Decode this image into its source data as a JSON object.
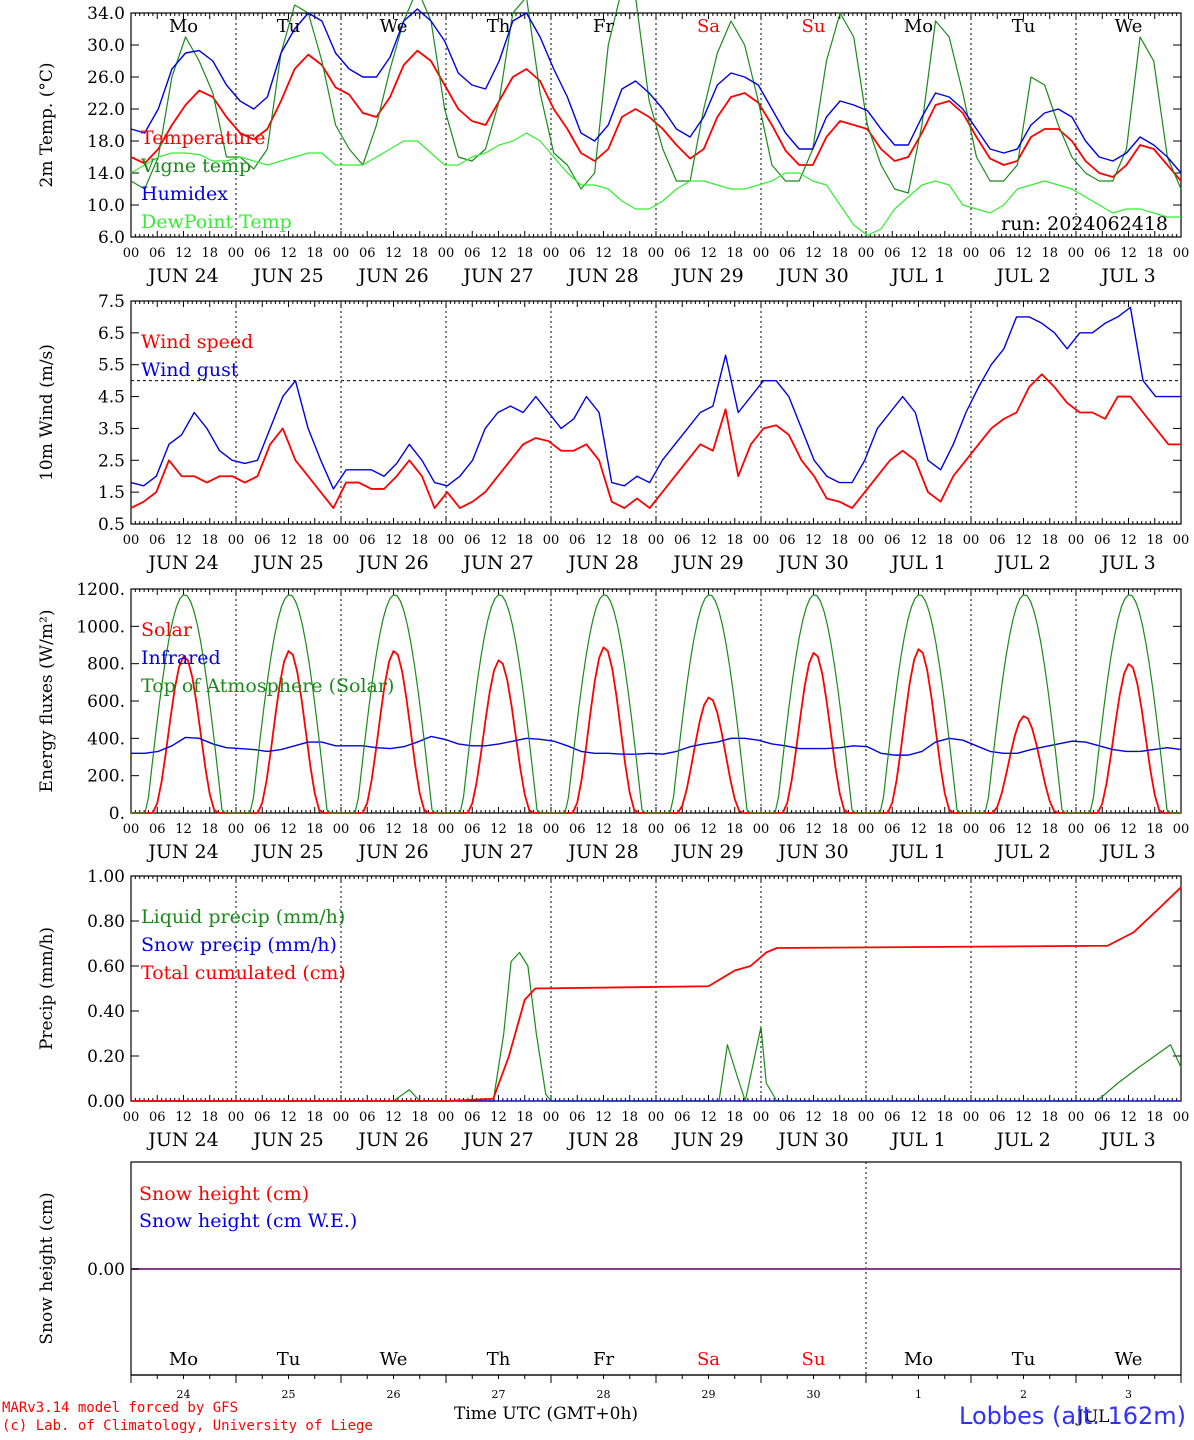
{
  "run_label": "run: 2024062418",
  "footer": {
    "model": "MARv3.14 model forced by GFS",
    "lab": "(c) Lab. of Climatology, University of Liege",
    "xlabel": "Time UTC (GMT+0h)",
    "overlap_label": "JUL",
    "station": "Lobbes (alt. 162m)"
  },
  "colors": {
    "red": "#ff0000",
    "green": "#1a8a1a",
    "blue": "#0000e0",
    "lightgreen": "#33ee33",
    "purple": "#8a3c8a"
  },
  "hour_ticks": [
    "00",
    "06",
    "12",
    "18"
  ],
  "days": [
    {
      "date": "JUN 24",
      "dow": "Mo",
      "weekend": false,
      "num": "24"
    },
    {
      "date": "JUN 25",
      "dow": "Tu",
      "weekend": false,
      "num": "25"
    },
    {
      "date": "JUN 26",
      "dow": "We",
      "weekend": false,
      "num": "26"
    },
    {
      "date": "JUN 27",
      "dow": "Th",
      "weekend": false,
      "num": "27"
    },
    {
      "date": "JUN 28",
      "dow": "Fr",
      "weekend": false,
      "num": "28"
    },
    {
      "date": "JUN 29",
      "dow": "Sa",
      "weekend": true,
      "num": "29"
    },
    {
      "date": "JUN 30",
      "dow": "Su",
      "weekend": true,
      "num": "30"
    },
    {
      "date": "JUL  1",
      "dow": "Mo",
      "weekend": false,
      "num": "1"
    },
    {
      "date": "JUL  2",
      "dow": "Tu",
      "weekend": false,
      "num": "2"
    },
    {
      "date": "JUL  3",
      "dow": "We",
      "weekend": false,
      "num": "3"
    }
  ],
  "chart_data": [
    {
      "type": "line",
      "ylabel": "2m Temp. (°C)",
      "ylim": [
        6,
        34
      ],
      "yticks": [
        "6.0",
        "10.0",
        "14.0",
        "18.0",
        "22.0",
        "26.0",
        "30.0",
        "34.0"
      ],
      "ytick_values": [
        6,
        10,
        14,
        18,
        22,
        26,
        30,
        34
      ],
      "show_dow": true,
      "series": [
        {
          "name": "Temperature",
          "color": "red",
          "values": [
            16,
            15.2,
            17,
            20,
            22.5,
            24.3,
            23.5,
            21,
            19,
            18.2,
            19.5,
            23,
            27,
            28.8,
            27.5,
            24.7,
            23.8,
            21.5,
            21,
            23.5,
            27.5,
            29.3,
            28,
            25,
            22,
            20.5,
            20,
            23,
            26,
            27,
            25.5,
            22,
            19.5,
            16.5,
            15.5,
            17,
            21,
            22,
            21,
            19.5,
            17.5,
            15.8,
            17,
            21,
            23.5,
            24,
            22.8,
            20,
            16.8,
            15,
            15,
            18.5,
            20.5,
            20,
            19.5,
            17,
            15.5,
            16,
            19,
            22.5,
            23,
            21.5,
            18.5,
            15.8,
            15,
            15.5,
            18.5,
            19.5,
            19.5,
            18,
            15.5,
            14,
            13.5,
            15,
            17.5,
            17,
            15,
            13
          ]
        },
        {
          "name": "Vigne temp",
          "color": "green",
          "values": [
            13,
            12,
            16,
            26,
            31,
            28,
            24,
            16,
            16,
            14.5,
            17,
            29,
            35,
            34,
            28,
            20,
            17,
            15,
            20,
            27,
            33,
            37,
            33,
            22,
            16,
            15.5,
            17,
            23,
            34,
            36,
            24,
            16.5,
            15,
            12,
            14,
            30,
            37,
            36,
            23,
            17,
            13,
            13,
            22,
            29,
            33,
            30,
            23,
            15,
            13,
            13,
            17,
            28,
            34,
            31,
            20,
            15,
            12,
            11.5,
            20,
            33,
            31,
            24,
            16,
            13,
            13,
            15,
            26,
            25,
            20,
            16,
            14,
            13,
            13,
            17,
            31,
            28,
            16,
            12
          ]
        },
        {
          "name": "Humidex",
          "color": "blue",
          "values": [
            19.5,
            19,
            22,
            27,
            29,
            29.3,
            28,
            25,
            23,
            22,
            23.5,
            29,
            32,
            34,
            33,
            29,
            27,
            26,
            26,
            28.5,
            33,
            34.5,
            33,
            30.5,
            26.5,
            25,
            24.5,
            28,
            33,
            34,
            31,
            27,
            23.5,
            19,
            18,
            20,
            24.5,
            25.5,
            24,
            22,
            19.5,
            18.5,
            21,
            25,
            26.5,
            26,
            25,
            22,
            19,
            17,
            17,
            21,
            23,
            22.5,
            21.8,
            19.5,
            17.5,
            17.5,
            21,
            24,
            23.5,
            22,
            19.5,
            17,
            16.5,
            17,
            20,
            21.5,
            22,
            21,
            18,
            16,
            15.5,
            16.5,
            18.5,
            17.5,
            16,
            14
          ]
        },
        {
          "name": "DewPoint Temp",
          "color": "lightgreen",
          "values": [
            14,
            15,
            16,
            16.5,
            16.5,
            16.3,
            15.5,
            15.5,
            16,
            15.5,
            15,
            15.5,
            16,
            16.5,
            16.5,
            15,
            15,
            15,
            16,
            17,
            18,
            18,
            16.5,
            15,
            15,
            16,
            16.5,
            17.5,
            18,
            19,
            18,
            16,
            14,
            12.5,
            12.5,
            12,
            10.5,
            9.5,
            9.5,
            10.5,
            12,
            13,
            13,
            12.5,
            12,
            12,
            12.5,
            13,
            14,
            14,
            13,
            12.5,
            10,
            7.5,
            6.2,
            7,
            9.5,
            11,
            12.5,
            13,
            12.5,
            10,
            9.5,
            9,
            10,
            12,
            12.5,
            13,
            12.5,
            12,
            11,
            10,
            9,
            9.5,
            9.5,
            9,
            8.5,
            8.5
          ]
        }
      ]
    },
    {
      "type": "line",
      "ylabel": "10m Wind (m/s)",
      "ylim": [
        0.5,
        7.5
      ],
      "yticks": [
        "0.5",
        "1.5",
        "2.5",
        "3.5",
        "4.5",
        "5.5",
        "6.5",
        "7.5"
      ],
      "ytick_values": [
        0.5,
        1.5,
        2.5,
        3.5,
        4.5,
        5.5,
        6.5,
        7.5
      ],
      "hline": 5,
      "show_dow": false,
      "series": [
        {
          "name": "Wind speed",
          "color": "red",
          "values": [
            1,
            1.2,
            1.5,
            2.5,
            2,
            2,
            1.8,
            2,
            2,
            1.8,
            2,
            3,
            3.5,
            2.5,
            2,
            1.5,
            1,
            1.8,
            1.8,
            1.6,
            1.6,
            2,
            2.5,
            2,
            1,
            1.5,
            1,
            1.2,
            1.5,
            2,
            2.5,
            3,
            3.2,
            3.1,
            2.8,
            2.8,
            3,
            2.5,
            1.2,
            1,
            1.3,
            1,
            1.5,
            2,
            2.5,
            3,
            2.8,
            4.1,
            2,
            3,
            3.5,
            3.6,
            3.3,
            2.5,
            2,
            1.3,
            1.2,
            1,
            1.5,
            2,
            2.5,
            2.8,
            2.5,
            1.5,
            1.2,
            2,
            2.5,
            3,
            3.5,
            3.8,
            4,
            4.8,
            5.2,
            4.8,
            4.3,
            4,
            4,
            3.8,
            4.5,
            4.5,
            4,
            3.5,
            3,
            3
          ]
        },
        {
          "name": "Wind gust",
          "color": "blue",
          "values": [
            1.8,
            1.7,
            2,
            3,
            3.3,
            4,
            3.5,
            2.8,
            2.5,
            2.4,
            2.5,
            3.5,
            4.5,
            5,
            3.5,
            2.5,
            1.6,
            2.2,
            2.2,
            2.2,
            2.0,
            2.4,
            3,
            2.5,
            1.8,
            1.7,
            2,
            2.5,
            3.5,
            4,
            4.2,
            4,
            4.5,
            4,
            3.5,
            3.8,
            4.5,
            4,
            1.8,
            1.7,
            2,
            1.8,
            2.5,
            3,
            3.5,
            4,
            4.2,
            5.8,
            4,
            4.5,
            5,
            5,
            4.5,
            3.5,
            2.5,
            2,
            1.8,
            1.8,
            2.5,
            3.5,
            4,
            4.5,
            4,
            2.5,
            2.2,
            3,
            4,
            4.8,
            5.5,
            6,
            7,
            7,
            6.8,
            6.5,
            6,
            6.5,
            6.5,
            6.8,
            7,
            7.3,
            5,
            4.5,
            4.5,
            4.5
          ]
        }
      ]
    },
    {
      "type": "line",
      "ylabel": "Energy fluxes (W/m²)",
      "ylim": [
        0,
        1200
      ],
      "yticks": [
        "0.",
        "200.",
        "400.",
        "600.",
        "800.",
        "1000.",
        "1200."
      ],
      "ytick_values": [
        0,
        200,
        400,
        600,
        800,
        1000,
        1200
      ],
      "show_dow": false,
      "series": [
        {
          "name": "Solar",
          "color": "red",
          "peaks": [
            [
              0,
              840
            ],
            [
              1,
              870
            ],
            [
              2,
              870
            ],
            [
              3,
              820
            ],
            [
              4,
              890
            ],
            [
              5,
              620
            ],
            [
              6,
              860
            ],
            [
              7,
              880
            ],
            [
              8,
              520
            ],
            [
              9,
              800
            ]
          ]
        },
        {
          "name": "Infrared",
          "color": "blue",
          "values": [
            320,
            320,
            330,
            360,
            405,
            400,
            370,
            350,
            345,
            340,
            330,
            340,
            360,
            380,
            380,
            360,
            360,
            360,
            350,
            345,
            355,
            380,
            410,
            395,
            370,
            360,
            360,
            370,
            385,
            400,
            395,
            385,
            360,
            330,
            320,
            320,
            315,
            315,
            320,
            315,
            330,
            355,
            370,
            380,
            400,
            400,
            390,
            370,
            360,
            345,
            345,
            345,
            350,
            360,
            355,
            320,
            310,
            310,
            330,
            380,
            400,
            390,
            360,
            330,
            320,
            320,
            340,
            355,
            370,
            385,
            380,
            360,
            340,
            330,
            330,
            340,
            350,
            340
          ]
        },
        {
          "name": "Top of Atmosphere (Solar)",
          "color": "green",
          "peak": 1170
        }
      ]
    },
    {
      "type": "line",
      "ylabel": "Precip (mm/h)",
      "ylim": [
        0,
        1
      ],
      "yticks": [
        "0.00",
        "0.20",
        "0.40",
        "0.60",
        "0.80",
        "1.00"
      ],
      "ytick_values": [
        0,
        0.2,
        0.4,
        0.6,
        0.8,
        1.0
      ],
      "show_dow": false,
      "series": [
        {
          "name": "Liquid precip (mm/h)",
          "color": "green",
          "points": [
            [
              2.5,
              0
            ],
            [
              2.65,
              0.05
            ],
            [
              2.75,
              0
            ],
            [
              3.45,
              0
            ],
            [
              3.55,
              0.3
            ],
            [
              3.62,
              0.62
            ],
            [
              3.7,
              0.66
            ],
            [
              3.78,
              0.6
            ],
            [
              3.86,
              0.3
            ],
            [
              3.95,
              0.03
            ],
            [
              4.0,
              0
            ],
            [
              5.6,
              0
            ],
            [
              5.68,
              0.25
            ],
            [
              5.78,
              0.1
            ],
            [
              5.85,
              0
            ],
            [
              6.0,
              0.33
            ],
            [
              6.05,
              0.08
            ],
            [
              6.15,
              0
            ],
            [
              9.2,
              0
            ],
            [
              9.4,
              0.08
            ],
            [
              9.6,
              0.15
            ],
            [
              9.75,
              0.2
            ],
            [
              9.9,
              0.25
            ],
            [
              10.0,
              0.15
            ]
          ]
        },
        {
          "name": "Snow precip (mm/h)",
          "color": "blue",
          "points": [
            [
              0,
              0
            ],
            [
              10,
              0
            ]
          ]
        },
        {
          "name": "Total cumulated (cm)",
          "color": "red",
          "points": [
            [
              0,
              0
            ],
            [
              2.65,
              0
            ],
            [
              3.0,
              0
            ],
            [
              3.45,
              0.01
            ],
            [
              3.6,
              0.2
            ],
            [
              3.75,
              0.45
            ],
            [
              3.85,
              0.5
            ],
            [
              5.5,
              0.51
            ],
            [
              5.75,
              0.58
            ],
            [
              5.9,
              0.6
            ],
            [
              6.05,
              0.66
            ],
            [
              6.15,
              0.68
            ],
            [
              9.3,
              0.69
            ],
            [
              9.55,
              0.75
            ],
            [
              9.8,
              0.86
            ],
            [
              10.0,
              0.95
            ]
          ]
        }
      ]
    },
    {
      "type": "line",
      "ylabel": "Snow height (cm)",
      "ytick": "0.00",
      "series": [
        {
          "name": "Snow height (cm)",
          "color": "red",
          "values": [
            0,
            0
          ]
        },
        {
          "name": "Snow height (cm W.E.)",
          "color": "blue",
          "values": [
            0,
            0
          ]
        }
      ]
    }
  ]
}
